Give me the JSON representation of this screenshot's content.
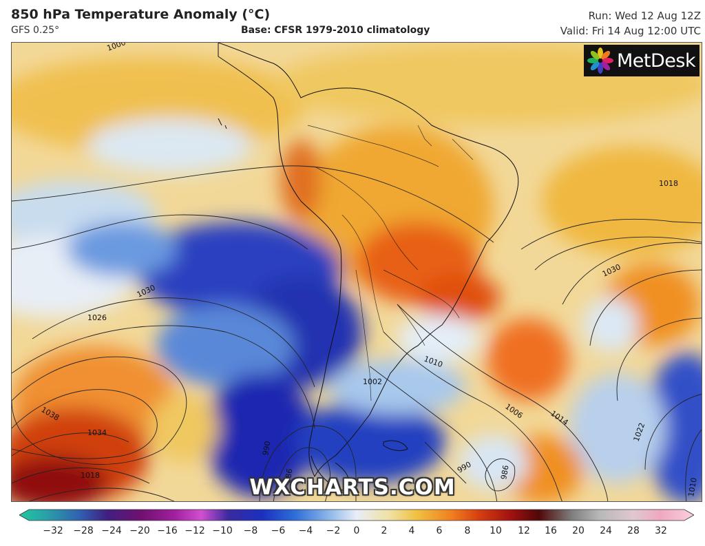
{
  "header": {
    "title": "850 hPa Temperature Anomaly (°C)",
    "model": "GFS 0.25°",
    "base": "Base: CFSR 1979-2010 climatology",
    "run": "Run: Wed 12 Aug 12Z",
    "valid": "Valid: Fri 14 Aug 12:00 UTC"
  },
  "logo": {
    "text": "MetDesk",
    "icon": "metdesk-flower-icon"
  },
  "watermark": "WXCHARTS.COM",
  "map": {
    "region": "South America and surrounding oceans",
    "isobar_labels": [
      "1000",
      "1018",
      "1030",
      "1026",
      "1030",
      "1038",
      "1034",
      "1018",
      "1022",
      "1010",
      "1002",
      "1006",
      "1014",
      "1022",
      "1030",
      "990",
      "986",
      "990",
      "986",
      "1010",
      "1014",
      "1002",
      "1022"
    ]
  },
  "colorbar": {
    "ticks": [
      "−32",
      "−28",
      "−24",
      "−20",
      "−16",
      "−12",
      "−10",
      "−8",
      "−6",
      "−4",
      "−2",
      "0",
      "2",
      "4",
      "6",
      "8",
      "10",
      "12",
      "16",
      "20",
      "24",
      "28",
      "32"
    ],
    "colors": [
      "#20c8a0",
      "#2aa0a8",
      "#3060b0",
      "#402080",
      "#701070",
      "#a020a0",
      "#d050d0",
      "#3a2aa0",
      "#1a30c0",
      "#3070d8",
      "#90b8e8",
      "#e8eef8",
      "#f0e0a0",
      "#f0c040",
      "#f08020",
      "#d84010",
      "#a01010",
      "#500808",
      "#808080",
      "#b8b8b8",
      "#e0c8d0",
      "#f0a8c0",
      "#f8d0e0"
    ]
  }
}
